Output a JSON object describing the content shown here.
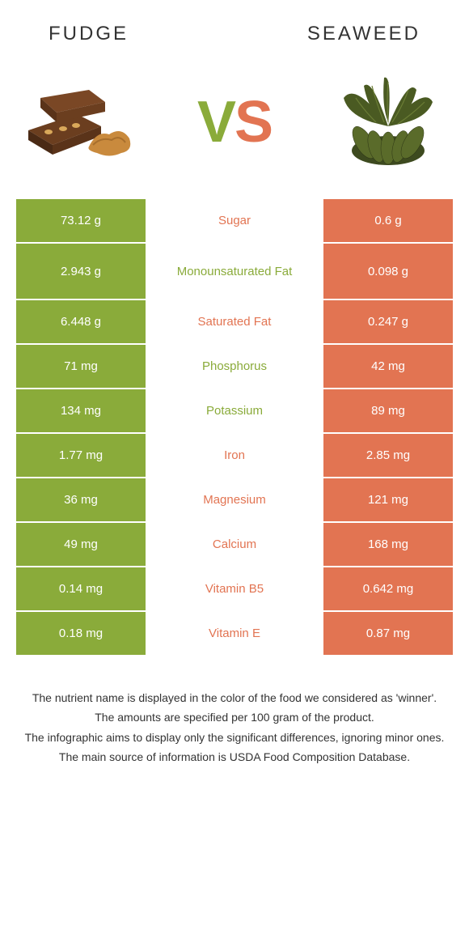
{
  "header": {
    "left": "Fudge",
    "right": "Seaweed"
  },
  "vs": {
    "v": "V",
    "s": "S"
  },
  "colors": {
    "green": "#8aab3a",
    "orange": "#e27452",
    "white": "#ffffff",
    "text": "#333333"
  },
  "rows": [
    {
      "left": "73.12 g",
      "label": "Sugar",
      "right": "0.6 g",
      "winner": "right",
      "tall": false
    },
    {
      "left": "2.943 g",
      "label": "Monounsaturated Fat",
      "right": "0.098 g",
      "winner": "left",
      "tall": true
    },
    {
      "left": "6.448 g",
      "label": "Saturated Fat",
      "right": "0.247 g",
      "winner": "right",
      "tall": false
    },
    {
      "left": "71 mg",
      "label": "Phosphorus",
      "right": "42 mg",
      "winner": "left",
      "tall": false
    },
    {
      "left": "134 mg",
      "label": "Potassium",
      "right": "89 mg",
      "winner": "left",
      "tall": false
    },
    {
      "left": "1.77 mg",
      "label": "Iron",
      "right": "2.85 mg",
      "winner": "right",
      "tall": false
    },
    {
      "left": "36 mg",
      "label": "Magnesium",
      "right": "121 mg",
      "winner": "right",
      "tall": false
    },
    {
      "left": "49 mg",
      "label": "Calcium",
      "right": "168 mg",
      "winner": "right",
      "tall": false
    },
    {
      "left": "0.14 mg",
      "label": "Vitamin B5",
      "right": "0.642 mg",
      "winner": "right",
      "tall": false
    },
    {
      "left": "0.18 mg",
      "label": "Vitamin E",
      "right": "0.87 mg",
      "winner": "right",
      "tall": false
    }
  ],
  "footer": {
    "line1": "The nutrient name is displayed in the color of the food we considered as 'winner'.",
    "line2": "The amounts are specified per 100 gram of the product.",
    "line3": "The infographic aims to display only the significant differences, ignoring minor ones.",
    "line4": "The main source of information is USDA Food Composition Database."
  }
}
